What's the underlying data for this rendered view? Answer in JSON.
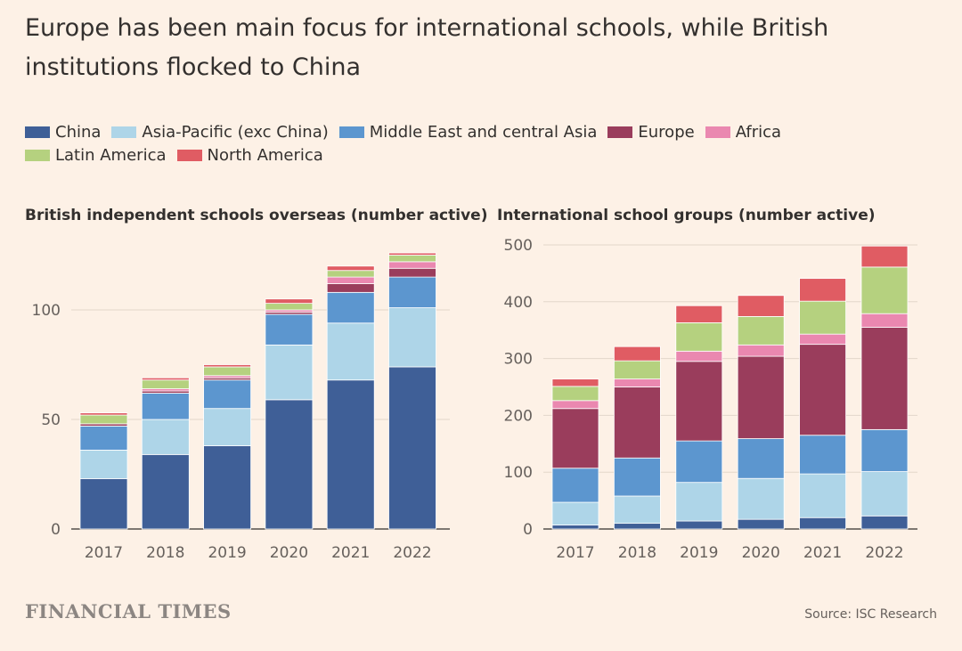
{
  "title": "Europe has been main focus for international schools, while British institutions flocked to China",
  "legend": [
    {
      "name": "China",
      "color": "#3f5f97"
    },
    {
      "name": "Asia-Pacific (exc China)",
      "color": "#aed5e8"
    },
    {
      "name": "Middle East and central Asia",
      "color": "#5c96cf"
    },
    {
      "name": "Europe",
      "color": "#9a3d5c"
    },
    {
      "name": "Africa",
      "color": "#ea88b0"
    },
    {
      "name": "Latin America",
      "color": "#b5d17f"
    },
    {
      "name": "North America",
      "color": "#e05c63"
    }
  ],
  "source": "Source: ISC Research",
  "logo": "FINANCIAL TIMES",
  "chart_data": [
    {
      "type": "bar",
      "stacked": true,
      "title": "British independent schools overseas (number active)",
      "categories": [
        "2017",
        "2018",
        "2019",
        "2020",
        "2021",
        "2022"
      ],
      "ylim": [
        0,
        125
      ],
      "yticks": [
        0,
        50,
        100
      ],
      "grid": true,
      "series": [
        {
          "name": "China",
          "values": [
            23,
            34,
            38,
            59,
            68,
            74
          ]
        },
        {
          "name": "Asia-Pacific (exc China)",
          "values": [
            13,
            16,
            17,
            25,
            26,
            27
          ]
        },
        {
          "name": "Middle East and central Asia",
          "values": [
            11,
            12,
            13,
            14,
            14,
            14
          ]
        },
        {
          "name": "Europe",
          "values": [
            1,
            1,
            1,
            1,
            4,
            4
          ]
        },
        {
          "name": "Africa",
          "values": [
            0,
            1,
            1,
            1,
            3,
            3
          ]
        },
        {
          "name": "Latin America",
          "values": [
            4,
            4,
            4,
            3,
            3,
            3
          ]
        },
        {
          "name": "North America",
          "values": [
            1,
            1,
            1,
            2,
            2,
            1
          ]
        }
      ]
    },
    {
      "type": "bar",
      "stacked": true,
      "title": "International school groups (number active)",
      "categories": [
        "2017",
        "2018",
        "2019",
        "2020",
        "2021",
        "2022"
      ],
      "ylim": [
        0,
        500
      ],
      "yticks": [
        0,
        100,
        200,
        300,
        400,
        500
      ],
      "grid": true,
      "series": [
        {
          "name": "China",
          "values": [
            7,
            10,
            14,
            17,
            20,
            23
          ]
        },
        {
          "name": "Asia-Pacific (exc China)",
          "values": [
            40,
            48,
            68,
            72,
            77,
            78
          ]
        },
        {
          "name": "Middle East and central Asia",
          "values": [
            60,
            67,
            73,
            70,
            68,
            74
          ]
        },
        {
          "name": "Europe",
          "values": [
            105,
            125,
            140,
            145,
            160,
            180
          ]
        },
        {
          "name": "Africa",
          "values": [
            14,
            14,
            18,
            20,
            18,
            24
          ]
        },
        {
          "name": "Latin America",
          "values": [
            25,
            32,
            50,
            50,
            58,
            82
          ]
        },
        {
          "name": "North America",
          "values": [
            13,
            25,
            30,
            37,
            40,
            37
          ]
        }
      ]
    }
  ]
}
